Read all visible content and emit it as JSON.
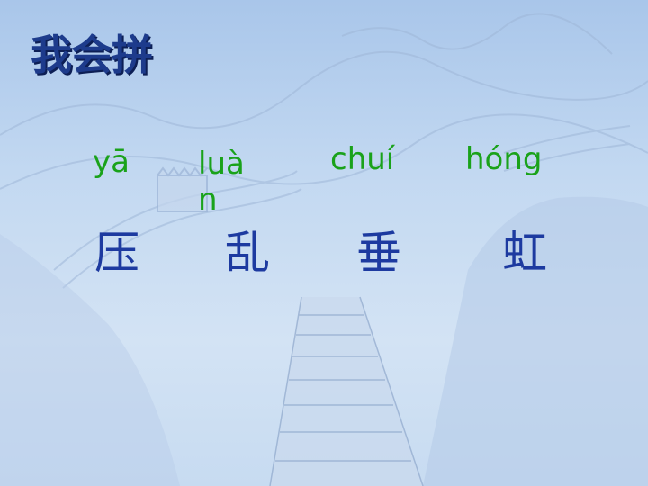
{
  "slide": {
    "title": "我会拼",
    "items": [
      {
        "pinyin": "yā",
        "character": "压"
      },
      {
        "pinyin": "luàn",
        "character": "乱"
      },
      {
        "pinyin": "chuí",
        "character": "垂"
      },
      {
        "pinyin": "hóng",
        "character": "虹"
      }
    ]
  },
  "colors": {
    "title": "#1d3b8c",
    "pinyin": "#1aa21a",
    "character": "#1d3aa0",
    "background": "#c2d8f1"
  }
}
